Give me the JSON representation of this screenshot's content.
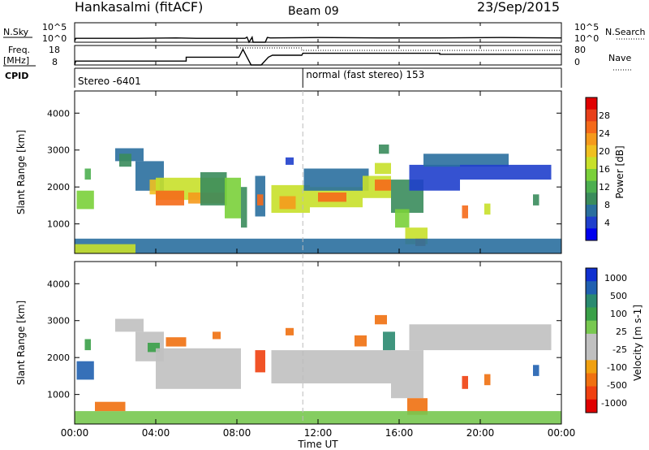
{
  "header": {
    "title": "Hankasalmi (fitACF)",
    "beam": "Beam 09",
    "date": "23/Sep/2015"
  },
  "time_axis": {
    "label": "Time UT",
    "ticks": [
      "00:00",
      "04:00",
      "08:00",
      "12:00",
      "16:00",
      "20:00",
      "00:00"
    ],
    "ticks_hours": [
      0,
      4,
      8,
      12,
      16,
      20,
      24
    ],
    "range_hours": [
      0,
      24
    ]
  },
  "chart_data": [
    {
      "type": "line",
      "name": "sky-search-noise",
      "left_label": "N.Sky",
      "left_ticks": [
        "10^5",
        "10^0"
      ],
      "right_label": "N.Search",
      "right_ticks": [
        "10^5",
        "10^0"
      ],
      "x_hours": [
        0.0,
        0.05,
        3.0,
        5.0,
        6.0,
        8.4,
        8.5,
        8.6,
        8.75,
        8.8,
        9.4,
        9.5,
        9.65,
        12.0,
        15.0,
        18.0,
        21.0,
        24.0
      ],
      "values_log10": [
        0.3,
        1.0,
        1.0,
        1.1,
        1.0,
        1.0,
        1.3,
        0.0,
        1.3,
        0.0,
        0.0,
        1.2,
        1.1,
        1.2,
        1.1,
        1.1,
        1.2,
        1.1
      ]
    },
    {
      "type": "line",
      "name": "frequency-nave",
      "left_label": "Freq.",
      "left_unit": "[MHz]",
      "left_ticks": [
        "18",
        "8"
      ],
      "right_label": "Nave",
      "right_ticks": [
        "80",
        "0"
      ],
      "freq_x_hours": [
        0.0,
        0.05,
        5.5,
        5.5,
        8.1,
        8.3,
        8.5,
        8.7,
        9.2,
        9.55,
        9.75,
        11.2,
        11.25,
        18.0,
        18.0,
        24.0
      ],
      "freq_values_mhz": [
        8.0,
        10.0,
        10.0,
        12.0,
        12.0,
        16.0,
        12.0,
        8.0,
        8.0,
        12.0,
        13.0,
        13.0,
        14.0,
        14.0,
        13.5,
        13.5
      ],
      "nave_x_hours": [
        0.0,
        8.0,
        8.0,
        11.2,
        11.2,
        24.0
      ],
      "nave_values": [
        80,
        80,
        70,
        70,
        60,
        60
      ]
    },
    {
      "type": "line",
      "name": "cpid",
      "label": "CPID",
      "segments": [
        {
          "label": "Stereo -6401",
          "from_hour": 0,
          "to_hour": 11.25
        },
        {
          "label": "normal (fast stereo) 153",
          "from_hour": 11.25,
          "to_hour": 24
        }
      ]
    },
    {
      "type": "heatmap",
      "name": "power",
      "ylabel": "Slant Range [km]",
      "yticks": [
        1000,
        2000,
        3000,
        4000
      ],
      "ylim": [
        200,
        4600
      ],
      "colorbar_label": "Power [dB]",
      "colorbar_ticks": [
        4,
        8,
        12,
        16,
        20,
        24,
        28
      ],
      "colorbar_range": [
        0,
        32
      ],
      "palette": [
        "#0000ee",
        "#1f3fcc",
        "#2a6f9e",
        "#3a8c5c",
        "#4caf50",
        "#7ad03a",
        "#c8e02a",
        "#f0c020",
        "#f59a1c",
        "#f56a1a",
        "#e8401a",
        "#e00000"
      ],
      "regions": [
        {
          "t0": 0.1,
          "t1": 0.95,
          "r0": 1400,
          "r1": 1900,
          "level": 14
        },
        {
          "t0": 0.5,
          "t1": 0.8,
          "r0": 2200,
          "r1": 2500,
          "level": 12
        },
        {
          "t0": 2.0,
          "t1": 3.4,
          "r0": 2700,
          "r1": 3050,
          "level": 6
        },
        {
          "t0": 2.2,
          "t1": 2.8,
          "r0": 2550,
          "r1": 2900,
          "level": 10
        },
        {
          "t0": 3.0,
          "t1": 4.4,
          "r0": 1900,
          "r1": 2700,
          "level": 6
        },
        {
          "t0": 3.7,
          "t1": 4.2,
          "r0": 1800,
          "r1": 2200,
          "level": 20
        },
        {
          "t0": 4.0,
          "t1": 7.4,
          "r0": 1650,
          "r1": 2250,
          "level": 18
        },
        {
          "t0": 4.0,
          "t1": 5.4,
          "r0": 1500,
          "r1": 1900,
          "level": 24
        },
        {
          "t0": 5.6,
          "t1": 7.4,
          "r0": 1550,
          "r1": 1850,
          "level": 22
        },
        {
          "t0": 6.2,
          "t1": 7.5,
          "r0": 1500,
          "r1": 2400,
          "level": 8
        },
        {
          "t0": 7.4,
          "t1": 8.2,
          "r0": 1150,
          "r1": 2250,
          "level": 14
        },
        {
          "t0": 8.2,
          "t1": 8.5,
          "r0": 900,
          "r1": 2000,
          "level": 8
        },
        {
          "t0": 8.9,
          "t1": 9.4,
          "r0": 1200,
          "r1": 2300,
          "level": 6
        },
        {
          "t0": 9.0,
          "t1": 9.3,
          "r0": 1500,
          "r1": 1800,
          "level": 26
        },
        {
          "t0": 9.7,
          "t1": 11.6,
          "r0": 1300,
          "r1": 2050,
          "level": 16
        },
        {
          "t0": 10.1,
          "t1": 10.9,
          "r0": 1400,
          "r1": 1750,
          "level": 22
        },
        {
          "t0": 10.4,
          "t1": 10.8,
          "r0": 2600,
          "r1": 2800,
          "level": 4
        },
        {
          "t0": 11.6,
          "t1": 14.2,
          "r0": 1450,
          "r1": 2000,
          "level": 18
        },
        {
          "t0": 12.0,
          "t1": 13.4,
          "r0": 1600,
          "r1": 1850,
          "level": 24
        },
        {
          "t0": 11.3,
          "t1": 14.5,
          "r0": 1900,
          "r1": 2500,
          "level": 6
        },
        {
          "t0": 14.2,
          "t1": 15.6,
          "r0": 1700,
          "r1": 2300,
          "level": 18
        },
        {
          "t0": 14.8,
          "t1": 15.6,
          "r0": 1900,
          "r1": 2200,
          "level": 24
        },
        {
          "t0": 14.8,
          "t1": 15.6,
          "r0": 2350,
          "r1": 2650,
          "level": 16
        },
        {
          "t0": 15.0,
          "t1": 15.5,
          "r0": 2900,
          "r1": 3150,
          "level": 10
        },
        {
          "t0": 15.6,
          "t1": 17.2,
          "r0": 1300,
          "r1": 2200,
          "level": 8
        },
        {
          "t0": 15.8,
          "t1": 16.5,
          "r0": 900,
          "r1": 1400,
          "level": 14
        },
        {
          "t0": 16.3,
          "t1": 17.4,
          "r0": 450,
          "r1": 900,
          "level": 18
        },
        {
          "t0": 16.8,
          "t1": 17.3,
          "r0": 400,
          "r1": 600,
          "level": 26
        },
        {
          "t0": 16.5,
          "t1": 19.0,
          "r0": 1900,
          "r1": 2600,
          "level": 4
        },
        {
          "t0": 17.2,
          "t1": 21.4,
          "r0": 2550,
          "r1": 2900,
          "level": 6
        },
        {
          "t0": 19.0,
          "t1": 23.5,
          "r0": 2200,
          "r1": 2600,
          "level": 4
        },
        {
          "t0": 19.1,
          "t1": 19.4,
          "r0": 1150,
          "r1": 1500,
          "level": 24
        },
        {
          "t0": 20.2,
          "t1": 20.5,
          "r0": 1250,
          "r1": 1550,
          "level": 18
        },
        {
          "t0": 22.6,
          "t1": 22.9,
          "r0": 1500,
          "r1": 1800,
          "level": 10
        },
        {
          "t0": 0.0,
          "t1": 24.0,
          "r0": 200,
          "r1": 600,
          "level": 6
        },
        {
          "t0": 0.0,
          "t1": 3.0,
          "r0": 200,
          "r1": 450,
          "level": 18
        }
      ]
    },
    {
      "type": "heatmap",
      "name": "velocity",
      "ylabel": "Slant Range [km]",
      "yticks": [
        1000,
        2000,
        3000,
        4000
      ],
      "ylim": [
        200,
        4600
      ],
      "colorbar_label": "Velocity [m s-1]",
      "colorbar_ticks": [
        1000,
        500,
        100,
        25,
        -25,
        -100,
        -500,
        -1000
      ],
      "palette": [
        "#1030d0",
        "#2060b0",
        "#2a8a70",
        "#3aa048",
        "#78c850",
        "#c0c0c0",
        "#c0c0c0",
        "#f0a010",
        "#f07010",
        "#f04010",
        "#e00000"
      ],
      "regions": [
        {
          "t0": 0.1,
          "t1": 0.95,
          "r0": 1400,
          "r1": 1900,
          "value": 700
        },
        {
          "t0": 0.5,
          "t1": 0.8,
          "r0": 2200,
          "r1": 2500,
          "value": 50
        },
        {
          "t0": 2.0,
          "t1": 3.4,
          "r0": 2700,
          "r1": 3050,
          "value": 0
        },
        {
          "t0": 3.0,
          "t1": 4.4,
          "r0": 1900,
          "r1": 2700,
          "value": 0
        },
        {
          "t0": 3.6,
          "t1": 4.2,
          "r0": 2150,
          "r1": 2400,
          "value": 60
        },
        {
          "t0": 4.0,
          "t1": 8.2,
          "r0": 1150,
          "r1": 2250,
          "value": 0
        },
        {
          "t0": 4.5,
          "t1": 5.5,
          "r0": 2300,
          "r1": 2550,
          "value": -300
        },
        {
          "t0": 6.8,
          "t1": 7.2,
          "r0": 2500,
          "r1": 2700,
          "value": -300
        },
        {
          "t0": 8.9,
          "t1": 9.4,
          "r0": 1600,
          "r1": 2200,
          "value": -700
        },
        {
          "t0": 9.7,
          "t1": 15.6,
          "r0": 1300,
          "r1": 2200,
          "value": 0
        },
        {
          "t0": 10.4,
          "t1": 10.8,
          "r0": 2600,
          "r1": 2800,
          "value": -300
        },
        {
          "t0": 13.8,
          "t1": 14.4,
          "r0": 2300,
          "r1": 2600,
          "value": -300
        },
        {
          "t0": 14.8,
          "t1": 15.4,
          "r0": 2900,
          "r1": 3150,
          "value": -300
        },
        {
          "t0": 15.2,
          "t1": 15.8,
          "r0": 2200,
          "r1": 2700,
          "value": 200
        },
        {
          "t0": 15.6,
          "t1": 17.2,
          "r0": 900,
          "r1": 2200,
          "value": 0
        },
        {
          "t0": 16.4,
          "t1": 17.4,
          "r0": 450,
          "r1": 900,
          "value": -150
        },
        {
          "t0": 16.5,
          "t1": 23.5,
          "r0": 2200,
          "r1": 2900,
          "value": 0
        },
        {
          "t0": 19.1,
          "t1": 19.4,
          "r0": 1150,
          "r1": 1500,
          "value": -500
        },
        {
          "t0": 20.2,
          "t1": 20.5,
          "r0": 1250,
          "r1": 1550,
          "value": -300
        },
        {
          "t0": 22.6,
          "t1": 22.9,
          "r0": 1500,
          "r1": 1800,
          "value": 600
        },
        {
          "t0": 0.0,
          "t1": 24.0,
          "r0": 200,
          "r1": 550,
          "value": 40
        },
        {
          "t0": 1.0,
          "t1": 2.5,
          "r0": 550,
          "r1": 800,
          "value": -150
        }
      ]
    }
  ]
}
